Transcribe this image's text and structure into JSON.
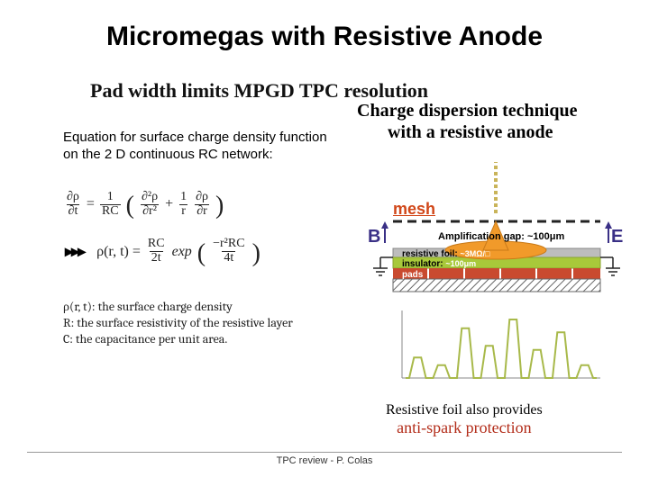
{
  "title": "Micromegas with Resistive Anode",
  "subtitle": "Pad width limits MPGD TPC resolution",
  "charge_technique": "Charge dispersion technique",
  "with_anode": "with a resistive anode",
  "left_text_line1": "Equation for surface charge density function",
  "left_text_line2": "on the 2 D continuous RC network:",
  "defs_line1": "ρ(r, t): the surface charge density",
  "defs_line2": "R: the surface resistivity of the resistive layer",
  "defs_line3": "C: the capacitance per unit area.",
  "antispark_line1": "Resistive foil also provides",
  "antispark_line2": "anti-spark protection",
  "footer": "TPC review - P. Colas",
  "diagram": {
    "mesh": "mesh",
    "B": "B",
    "E": "E",
    "amp_gap": "Amplification gap: ~100μm",
    "foil": "resistive foil:",
    "foil_val": "~3MΩ/□",
    "insulator": "insulator:",
    "insulator_val": "~100μm",
    "pads": "pads",
    "colors": {
      "track_dash": "#c9b45a",
      "mesh_line": "#222",
      "foil_fill": "#bdbdbd",
      "foil_accent": "#888",
      "insulator_fill": "#a8c93a",
      "pads_fill": "#c94a2f",
      "hatched": "#666",
      "arrow_be": "#3a3086",
      "charge_fill": "#f19a2a",
      "charge_stroke": "#c97a18",
      "signal_stroke": "#a8b94a"
    },
    "signal_peaks": [
      0.35,
      0.22,
      0.85,
      0.55,
      1.0,
      0.48,
      0.78,
      0.22
    ]
  },
  "eq": {
    "lhs_num": "∂ρ",
    "lhs_den": "∂t",
    "rc_num": "1",
    "rc_den": "RC",
    "d2_num": "∂²ρ",
    "d2_den": "∂r²",
    "d1_coeff_num": "1",
    "d1_coeff_den": "r",
    "d1_num": "∂ρ",
    "d1_den": "∂r",
    "rho": "ρ(r, t) = ",
    "sol_num": "RC",
    "sol_den": "2t",
    "exp": "exp",
    "exp_num": "−r²RC",
    "exp_den": "4t"
  }
}
